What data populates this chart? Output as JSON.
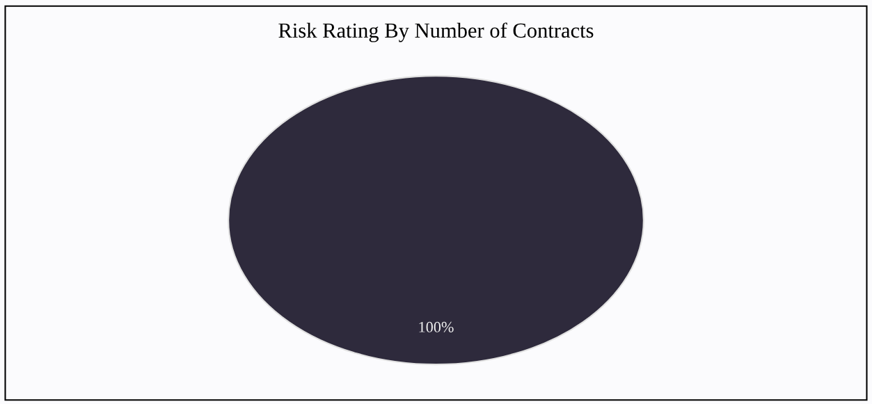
{
  "chart_data": {
    "type": "pie",
    "title": "Risk Rating By Number of Contracts",
    "categories": [
      null
    ],
    "values": [
      100
    ],
    "colors": [
      "#2e2a3c"
    ],
    "value_labels": [
      "100%"
    ]
  }
}
